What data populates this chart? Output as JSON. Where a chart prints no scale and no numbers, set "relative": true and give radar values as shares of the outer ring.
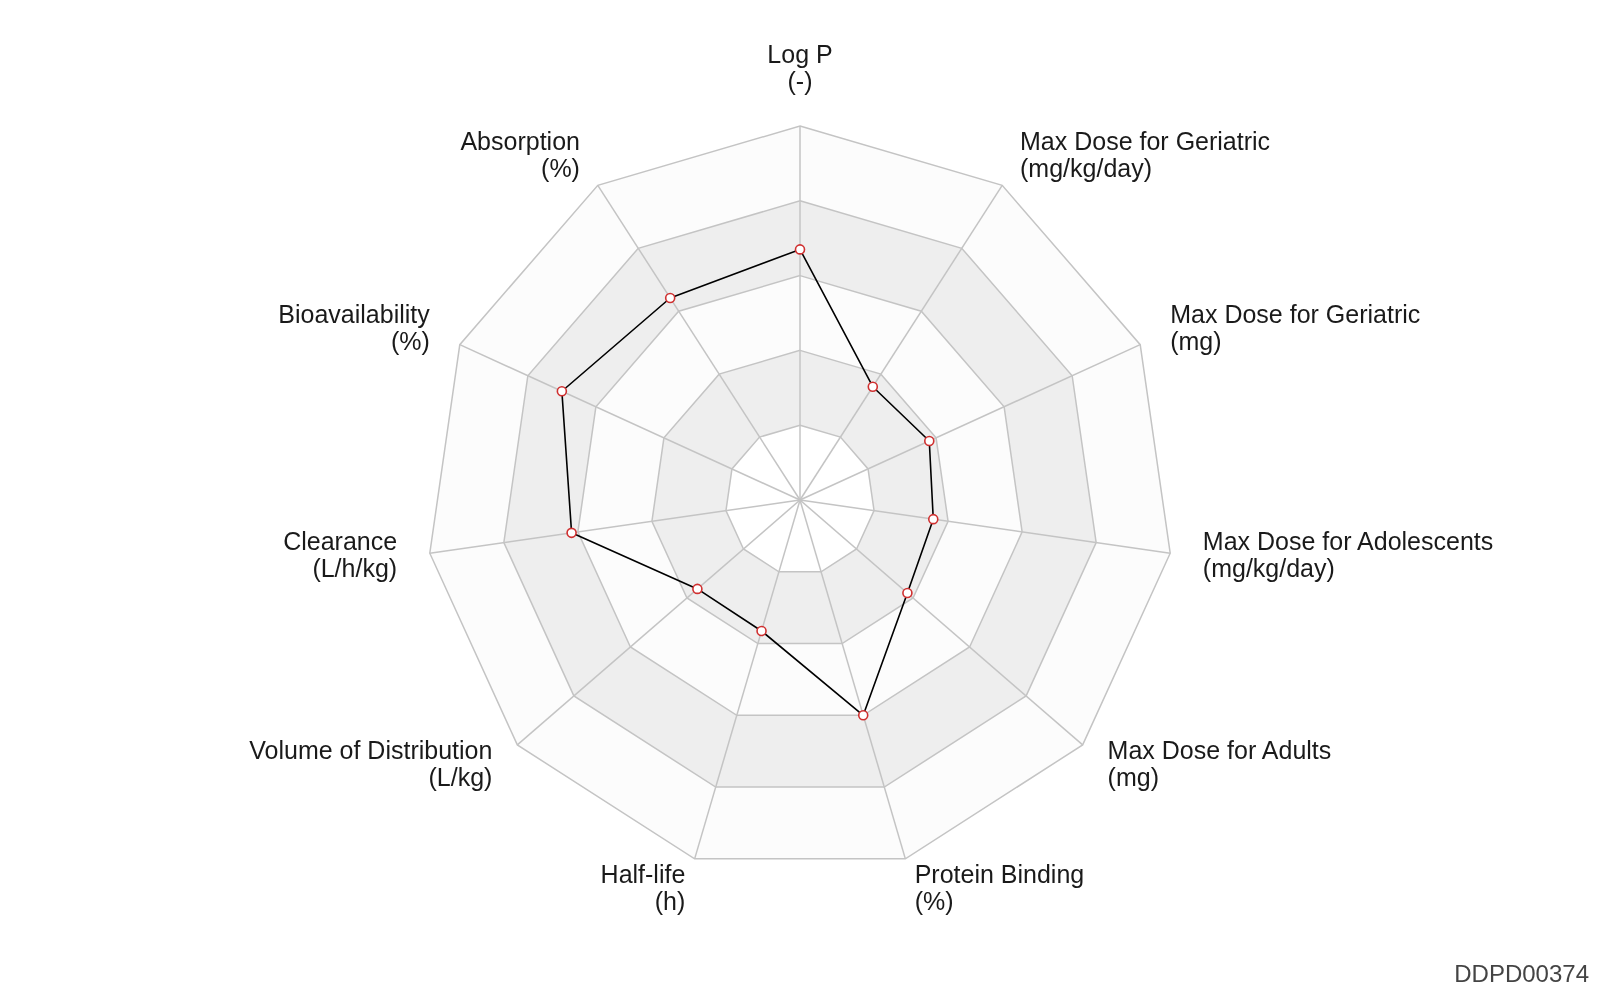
{
  "chart_data": {
    "type": "radar",
    "relative": true,
    "categories": [
      "Log P\n(-)",
      "Max Dose for Geriatric\n(mg/kg/day)",
      "Max Dose for Geriatric\n(mg)",
      "Max Dose for Adolescents\n(mg/kg/day)",
      "Max Dose for Adults\n(mg)",
      "Protein Binding\n(%)",
      "Half-life\n(h)",
      "Volume of Distribution\n(L/kg)",
      "Clearance\n(L/h/kg)",
      "Bioavailability\n(%)",
      "Absorption\n(%)"
    ],
    "series": [
      {
        "color": "#000000",
        "values": [
          0.67,
          0.36,
          0.38,
          0.36,
          0.38,
          0.6,
          0.365,
          0.363,
          0.617,
          0.7,
          0.642
        ]
      }
    ],
    "grid": true,
    "marker": "circle",
    "annotations": [
      "DDPD00374"
    ]
  }
}
